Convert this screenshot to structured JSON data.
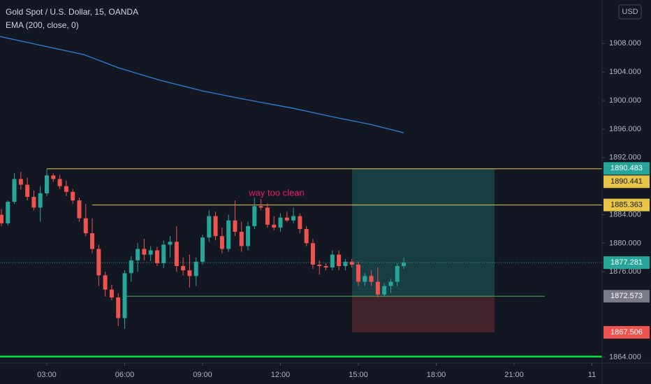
{
  "chart_data": {
    "type": "candlestick",
    "title": "Gold Spot / U.S. Dollar, 15, OANDA",
    "currency": "USD",
    "annotation": "way too clean",
    "up_color": "#26a69a",
    "down_color": "#ef5350",
    "xlim": [
      1.197,
      24.39
    ],
    "ylim": [
      1863.2,
      1914.1
    ],
    "xticks": [
      {
        "value": 3,
        "label": "03:00"
      },
      {
        "value": 6,
        "label": "06:00"
      },
      {
        "value": 9,
        "label": "09:00"
      },
      {
        "value": 12,
        "label": "12:00"
      },
      {
        "value": 15,
        "label": "15:00"
      },
      {
        "value": 18,
        "label": "18:00"
      },
      {
        "value": 21,
        "label": "21:00"
      },
      {
        "value": 24,
        "label": "11"
      }
    ],
    "yticks": [
      {
        "value": 1864,
        "label": "1864.000"
      },
      {
        "value": 1876,
        "label": "1876.000"
      },
      {
        "value": 1880,
        "label": "1880.000"
      },
      {
        "value": 1884,
        "label": "1884.000"
      },
      {
        "value": 1892,
        "label": "1892.000"
      },
      {
        "value": 1896,
        "label": "1896.000"
      },
      {
        "value": 1900,
        "label": "1900.000"
      },
      {
        "value": 1904,
        "label": "1904.000"
      },
      {
        "value": 1908,
        "label": "1908.000"
      }
    ],
    "x": [
      1.25,
      1.5,
      1.75,
      2,
      2.25,
      2.5,
      2.75,
      3,
      3.25,
      3.5,
      3.75,
      4,
      4.25,
      4.5,
      4.75,
      5,
      5.25,
      5.5,
      5.75,
      6,
      6.25,
      6.5,
      6.75,
      7,
      7.25,
      7.5,
      7.75,
      8,
      8.25,
      8.5,
      8.75,
      9,
      9.25,
      9.5,
      9.75,
      10,
      10.25,
      10.5,
      10.75,
      11,
      11.25,
      11.5,
      11.75,
      12,
      12.25,
      12.5,
      12.75,
      13,
      13.25,
      13.5,
      13.75,
      14,
      14.25,
      14.5,
      14.75,
      15,
      15.25,
      15.5,
      15.75,
      16,
      16.25,
      16.5,
      16.75
    ],
    "open": [
      1884.0,
      1882.8,
      1885.8,
      1889.0,
      1888.2,
      1886.5,
      1885.0,
      1887.0,
      1889.5,
      1889.0,
      1888.0,
      1887.2,
      1886.0,
      1883.5,
      1881.4,
      1879.2,
      1875.5,
      1873.5,
      1872.4,
      1869.5,
      1875.8,
      1877.6,
      1879.2,
      1878.4,
      1879.0,
      1877.2,
      1879.8,
      1880.2,
      1876.8,
      1876.2,
      1875.4,
      1877.4,
      1880.8,
      1883.8,
      1881.0,
      1879.2,
      1883.2,
      1881.6,
      1879.6,
      1882.4,
      1885.2,
      1885.0,
      1882.6,
      1882.2,
      1883.6,
      1883.2,
      1883.8,
      1882.0,
      1880.0,
      1877.0,
      1876.8,
      1876.6,
      1878.4,
      1876.8,
      1877.4,
      1877.0,
      1874.6,
      1875.4,
      1874.6,
      1872.8,
      1874.0,
      1874.6,
      1876.8
    ],
    "high": [
      1884.8,
      1886.0,
      1889.8,
      1890.0,
      1889.2,
      1887.4,
      1888.0,
      1890.4,
      1889.8,
      1889.6,
      1888.8,
      1887.6,
      1886.4,
      1885.5,
      1883.5,
      1879.8,
      1876.0,
      1874.2,
      1873.0,
      1876.2,
      1878.2,
      1880.0,
      1880.6,
      1879.6,
      1879.5,
      1880.4,
      1881.0,
      1882.4,
      1878.0,
      1878.4,
      1878.0,
      1881.2,
      1884.6,
      1884.4,
      1882.2,
      1884.0,
      1886.0,
      1883.0,
      1883.0,
      1886.4,
      1886.2,
      1885.6,
      1883.8,
      1884.2,
      1884.4,
      1885.0,
      1884.2,
      1882.4,
      1880.6,
      1877.6,
      1877.2,
      1879.0,
      1879.0,
      1877.8,
      1877.8,
      1877.4,
      1875.8,
      1876.2,
      1876.6,
      1874.4,
      1875.0,
      1877.2,
      1878.0
    ],
    "low": [
      1882.4,
      1882.5,
      1885.5,
      1887.5,
      1886.0,
      1884.6,
      1883.0,
      1886.6,
      1888.6,
      1887.6,
      1886.6,
      1885.5,
      1883.0,
      1881.0,
      1878.6,
      1874.0,
      1872.5,
      1872.0,
      1868.4,
      1868.0,
      1874.6,
      1876.0,
      1877.6,
      1877.5,
      1876.8,
      1876.5,
      1878.0,
      1876.0,
      1875.5,
      1873.8,
      1874.0,
      1877.0,
      1880.2,
      1880.4,
      1878.6,
      1878.8,
      1881.0,
      1878.8,
      1879.0,
      1882.0,
      1884.6,
      1882.2,
      1881.8,
      1881.6,
      1883.0,
      1882.8,
      1881.4,
      1879.6,
      1876.4,
      1875.6,
      1876.2,
      1876.2,
      1876.2,
      1876.2,
      1876.6,
      1874.0,
      1874.0,
      1874.0,
      1872.4,
      1872.5,
      1873.0,
      1874.0,
      1876.4
    ],
    "close": [
      1882.8,
      1885.8,
      1889.0,
      1888.2,
      1886.5,
      1885.0,
      1887.0,
      1889.5,
      1889.0,
      1888.0,
      1887.2,
      1886.0,
      1883.5,
      1881.4,
      1879.2,
      1875.5,
      1873.5,
      1872.4,
      1869.5,
      1875.8,
      1877.6,
      1879.2,
      1878.4,
      1879.0,
      1877.2,
      1879.8,
      1880.2,
      1876.8,
      1876.2,
      1875.4,
      1877.4,
      1880.8,
      1883.8,
      1881.0,
      1879.2,
      1883.2,
      1881.6,
      1879.6,
      1882.4,
      1885.2,
      1885.0,
      1882.6,
      1882.2,
      1883.6,
      1883.2,
      1883.8,
      1882.0,
      1880.0,
      1877.0,
      1876.8,
      1876.6,
      1878.4,
      1876.8,
      1877.4,
      1877.0,
      1874.6,
      1875.4,
      1874.6,
      1872.8,
      1874.0,
      1874.6,
      1876.8,
      1877.281
    ],
    "ema": {
      "name": "EMA (200, close, 0)",
      "color": "#2f7ed8",
      "x": [
        1.197,
        2.81,
        4.43,
        5.77,
        7.39,
        9.0,
        10.62,
        12.5,
        14.11,
        15.46,
        16.75
      ],
      "values": [
        1908.98,
        1907.71,
        1906.44,
        1904.58,
        1902.82,
        1901.35,
        1900.18,
        1898.91,
        1897.64,
        1896.66,
        1895.49
      ]
    },
    "levels": [
      {
        "value": 1890.441,
        "color": "#e8c547",
        "x_start": 3.0
      },
      {
        "value": 1885.363,
        "color": "#e8c547",
        "x_start": 4.75
      },
      {
        "value": 1872.573,
        "color": "#4caf50",
        "x_start": 6.0,
        "x_end": 22.18
      },
      {
        "value": 1864.1,
        "color": "#00e640",
        "x_start": 1.197
      }
    ],
    "position": {
      "entry": 1872.573,
      "target": 1890.483,
      "stop": 1867.506,
      "x_start": 14.76,
      "x_end": 20.25
    }
  }
}
